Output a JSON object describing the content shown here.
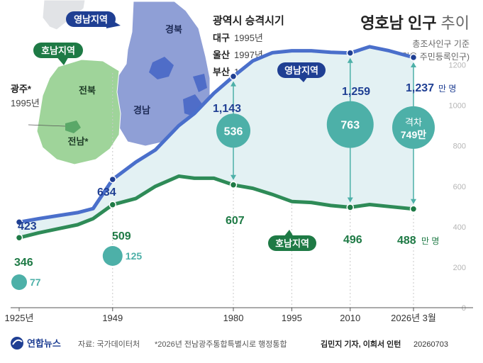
{
  "chart_data": {
    "type": "line",
    "title": "영호남 인구",
    "title_suffix": "추이",
    "subtitle": "총조사인구 기준",
    "subtitle2": "(2026년 3월은 주민등록인구)",
    "unit": "만 명",
    "ylim": [
      0,
      1300
    ],
    "yticks": [
      0,
      200,
      400,
      600,
      800,
      1000,
      1200
    ],
    "xlim": [
      1925,
      2026.25
    ],
    "xticks": [
      {
        "value": 1925,
        "label": "1925년"
      },
      {
        "value": 1949,
        "label": "1949"
      },
      {
        "value": 1980,
        "label": "1980"
      },
      {
        "value": 1995,
        "label": "1995"
      },
      {
        "value": 2010,
        "label": "2010"
      },
      {
        "value": 2026.25,
        "label": "2026년 3월"
      }
    ],
    "series": [
      {
        "name": "영남지역",
        "color": "#4a6fcb",
        "x": [
          1925,
          1930,
          1935,
          1940,
          1944,
          1949,
          1955,
          1960,
          1966,
          1970,
          1975,
          1980,
          1985,
          1990,
          1995,
          2000,
          2005,
          2010,
          2015,
          2020,
          2026.25
        ],
        "values": [
          423,
          440,
          455,
          470,
          490,
          634,
          720,
          780,
          900,
          960,
          1060,
          1143,
          1220,
          1260,
          1270,
          1270,
          1262,
          1259,
          1290,
          1270,
          1237
        ],
        "labels": [
          {
            "x": 1925,
            "value": 423,
            "text": "423"
          },
          {
            "x": 1949,
            "value": 634,
            "text": "634"
          },
          {
            "x": 1980,
            "value": 1143,
            "text": "1,143"
          },
          {
            "x": 2010,
            "value": 1259,
            "text": "1,259"
          },
          {
            "x": 2026.25,
            "value": 1237,
            "text": "1,237"
          }
        ]
      },
      {
        "name": "호남지역",
        "color": "#2e8b57",
        "x": [
          1925,
          1930,
          1935,
          1940,
          1944,
          1949,
          1955,
          1960,
          1966,
          1970,
          1975,
          1980,
          1985,
          1990,
          1995,
          2000,
          2005,
          2010,
          2015,
          2020,
          2026.25
        ],
        "values": [
          346,
          370,
          390,
          410,
          440,
          509,
          540,
          600,
          650,
          640,
          640,
          607,
          590,
          560,
          525,
          520,
          505,
          496,
          510,
          500,
          488
        ],
        "labels": [
          {
            "x": 1925,
            "value": 346,
            "text": "346"
          },
          {
            "x": 1949,
            "value": 509,
            "text": "509"
          },
          {
            "x": 1980,
            "value": 607,
            "text": "607"
          },
          {
            "x": 2010,
            "value": 496,
            "text": "496"
          },
          {
            "x": 2026.25,
            "value": 488,
            "text": "488"
          }
        ]
      }
    ],
    "gaps": [
      {
        "x": 1925,
        "value": 77,
        "text": "77",
        "style": "outside"
      },
      {
        "x": 1949,
        "value": 125,
        "text": "125",
        "style": "outside"
      },
      {
        "x": 1980,
        "value": 536,
        "text": "536",
        "style": "inside"
      },
      {
        "x": 2010,
        "value": 763,
        "text": "763",
        "style": "inside"
      },
      {
        "x": 2026.25,
        "value": 749,
        "text": "749만",
        "prefix": "격차",
        "style": "inside"
      }
    ],
    "grid": false,
    "legend": "inline"
  },
  "map": {
    "yeongnam_badge": "영남지역",
    "honam_badge": "호남지역",
    "regions": [
      "경북",
      "경남",
      "전북",
      "전남*"
    ],
    "gwangju": {
      "name": "광주*",
      "year": "1995년"
    },
    "promotion": {
      "title": "광역시 승격시기",
      "items": [
        {
          "city": "대구",
          "year": "1995년"
        },
        {
          "city": "울산",
          "year": "1997년"
        },
        {
          "city": "부산",
          "year": "1995년"
        }
      ]
    },
    "colors": {
      "yeongnam": "#8f9fd6",
      "honam": "#9fd49a",
      "city": "#4f6dc8",
      "honam_city": "#5aa868"
    }
  },
  "footer": {
    "logo": "연합뉴스",
    "source": "자료: 국가데이터처",
    "note": "*2026년 전남광주통합특별시로 행정통합",
    "credit": "김민지 기자, 이희서 인턴",
    "date": "20260703"
  },
  "colors": {
    "accent": "#4a6fcb",
    "honam": "#2e8b57",
    "gap_circle": "#4db0a8",
    "fill": "#e3f1f3"
  }
}
